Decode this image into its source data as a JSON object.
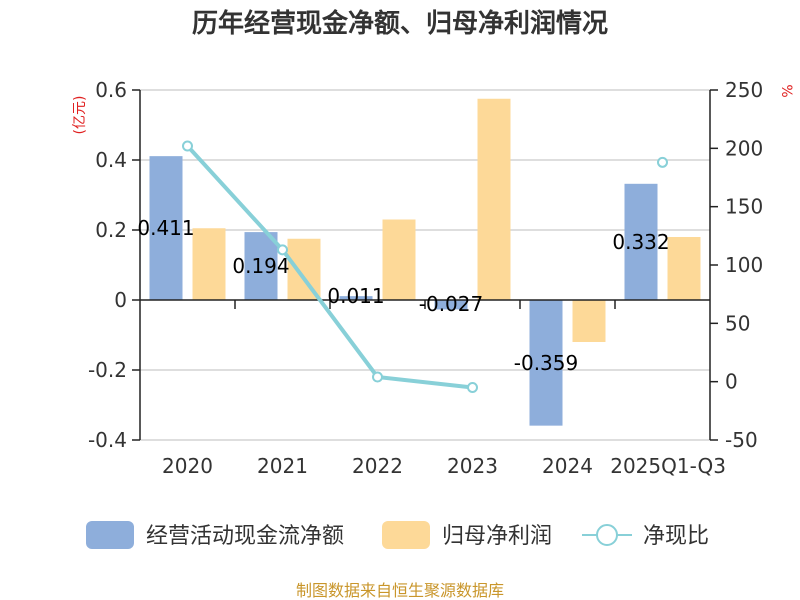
{
  "chart_data": {
    "type": "bar",
    "title": "历年经营现金净额、归母净利润情况",
    "categories": [
      "2020",
      "2021",
      "2022",
      "2023",
      "2024",
      "2025Q1-Q3"
    ],
    "series": [
      {
        "name": "经营活动现金流净额",
        "type": "bar",
        "axis": "left",
        "color": "#8eaedb",
        "values": [
          0.411,
          0.194,
          0.011,
          -0.027,
          -0.359,
          0.332
        ],
        "labels": [
          "0.411",
          "0.194",
          "0.011",
          "-0.027",
          "-0.359",
          "0.332"
        ]
      },
      {
        "name": "归母净利润",
        "type": "bar",
        "axis": "left",
        "color": "#fdd998",
        "values": [
          0.205,
          0.175,
          0.23,
          0.575,
          -0.12,
          0.18
        ]
      },
      {
        "name": "净现比",
        "type": "line",
        "axis": "right",
        "color": "#88d0d8",
        "values": [
          202,
          113,
          4,
          -5,
          null,
          188
        ]
      }
    ],
    "y_left": {
      "label": "(亿元)",
      "ylim": [
        -0.4,
        0.6
      ],
      "ticks": [
        0.6,
        0.4,
        0.2,
        0,
        -0.2,
        -0.4
      ],
      "tick_labels": [
        "0.6",
        "0.4",
        "0.2",
        "0",
        "-0.2",
        "-0.4"
      ]
    },
    "y_right": {
      "label": "%",
      "ylim": [
        -50,
        250
      ],
      "ticks": [
        250,
        200,
        150,
        100,
        50,
        0,
        -50
      ],
      "tick_labels": [
        "250",
        "200",
        "150",
        "100",
        "50",
        "0",
        "-50"
      ]
    },
    "legend_position": "bottom",
    "grid": true
  },
  "source": "制图数据来自恒生聚源数据库"
}
